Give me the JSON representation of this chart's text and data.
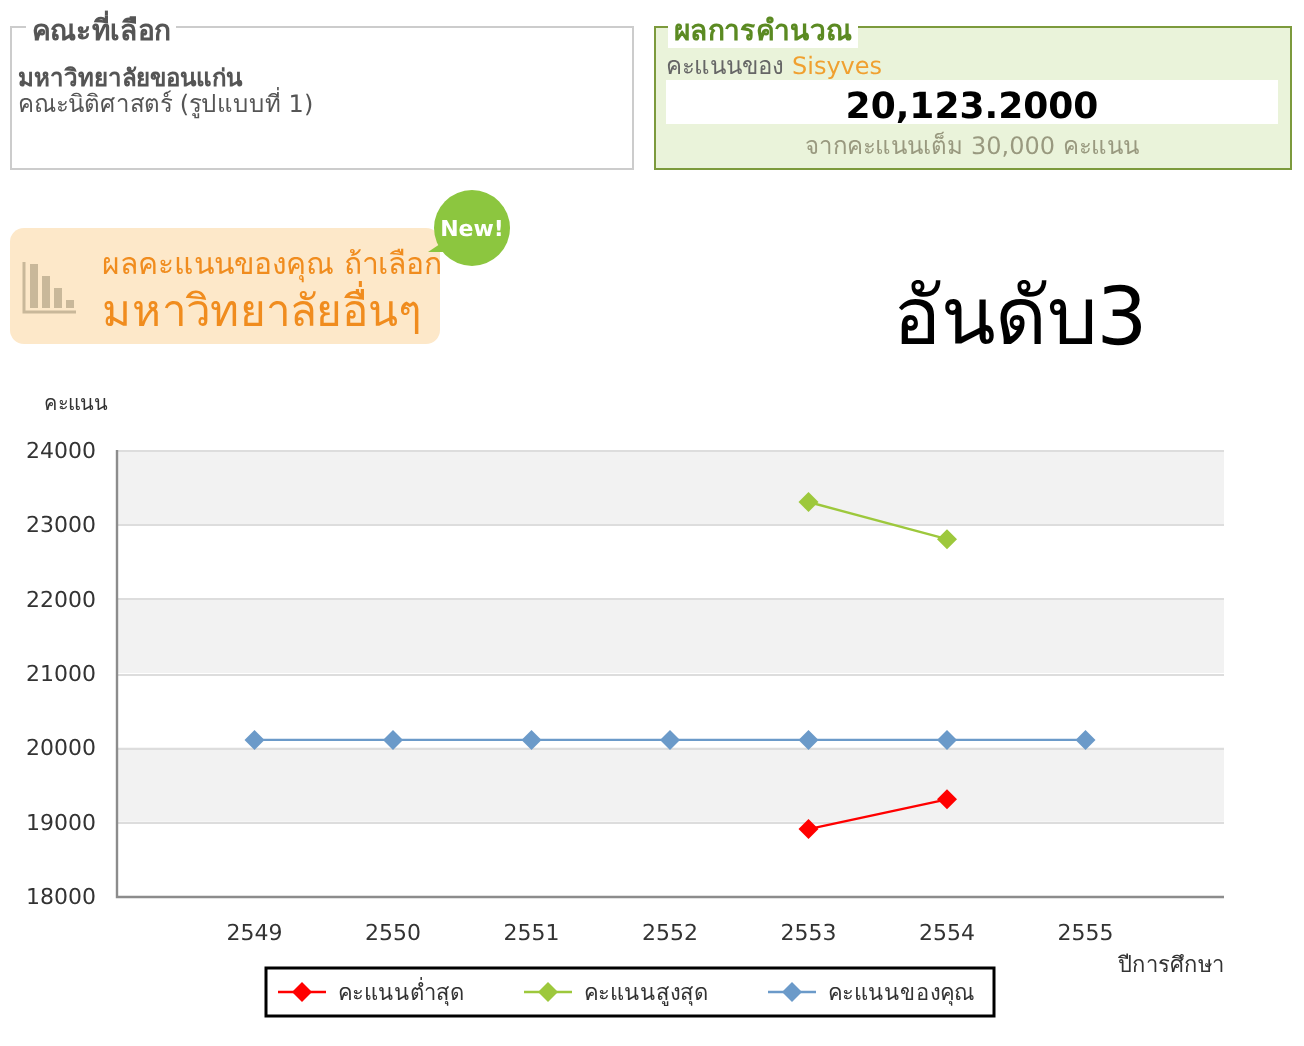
{
  "chart_data": {
    "type": "line",
    "title": "อันดับ3",
    "xlabel": "ปีการศึกษา",
    "ylabel": "คะแนน",
    "categories": [
      "2549",
      "2550",
      "2551",
      "2552",
      "2553",
      "2554",
      "2555"
    ],
    "series": [
      {
        "name": "คะแนนต่ำสุด",
        "color": "#ff0000",
        "values": [
          null,
          null,
          null,
          null,
          18900,
          19300,
          null
        ]
      },
      {
        "name": "คะแนนสูงสุด",
        "color": "#9dc83c",
        "values": [
          null,
          null,
          null,
          null,
          23300,
          22800,
          null
        ]
      },
      {
        "name": "คะแนนของคุณ",
        "color": "#6b9ac9",
        "values": [
          20100,
          20100,
          20100,
          20100,
          20100,
          20100,
          20100
        ]
      }
    ],
    "ylim": [
      18000,
      24000
    ],
    "yticks": [
      18000,
      19000,
      20000,
      21000,
      22000,
      23000,
      24000
    ],
    "grid": "y",
    "legend": "bottom",
    "marker": "diamond",
    "line_style": "solid",
    "annotations": [
      "คณะที่เลือก",
      "มหาวิทยาลัยขอนแก่น",
      "คณะนิติศาสตร์ (รูปแบบที่ 1)",
      "ผลการคำนวณ",
      "คะแนนของ",
      "Sisyves",
      "20,123.2000",
      "จากคะแนนเต็ม 30,000 คะแนน",
      "ผลคะแนนของคุณ ถ้าเลือก",
      "มหาวิทยาลัยอื่นๆ",
      "New!"
    ]
  }
}
